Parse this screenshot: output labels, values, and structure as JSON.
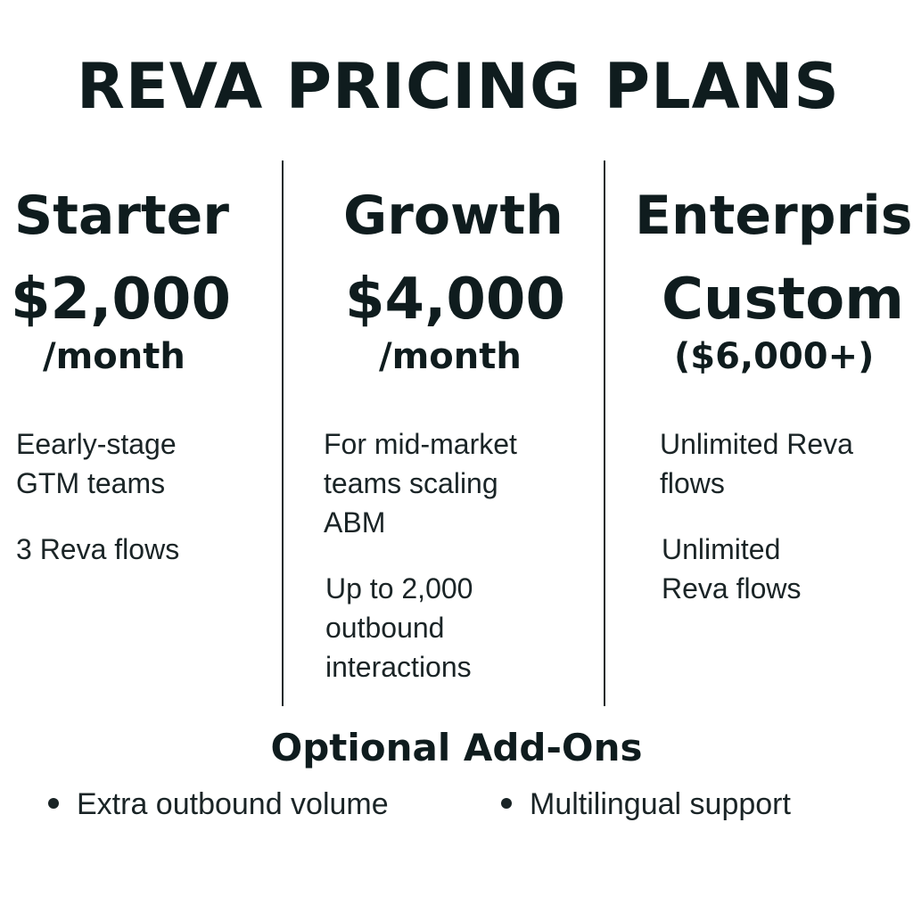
{
  "title": "REVA PRICING PLANS",
  "plans": [
    {
      "name": "Starter",
      "price": "$2,000",
      "price_unit": "/month",
      "features": [
        "Eearly-stage GTM teams",
        "3 Reva flows"
      ]
    },
    {
      "name": "Growth",
      "price": "$4,000",
      "price_unit": "/month",
      "features": [
        "For mid-market teams scaling ABM",
        "Up to 2,000 outbound interactions"
      ]
    },
    {
      "name": "Enterprise",
      "price": "Custom",
      "price_unit": "($6,000+)",
      "features": [
        "Unlimited Reva flows",
        "Unlimited Reva flows"
      ]
    }
  ],
  "addons": {
    "title": "Optional Add-Ons",
    "items": [
      "Extra outbound volume",
      "Multilingual support"
    ]
  }
}
